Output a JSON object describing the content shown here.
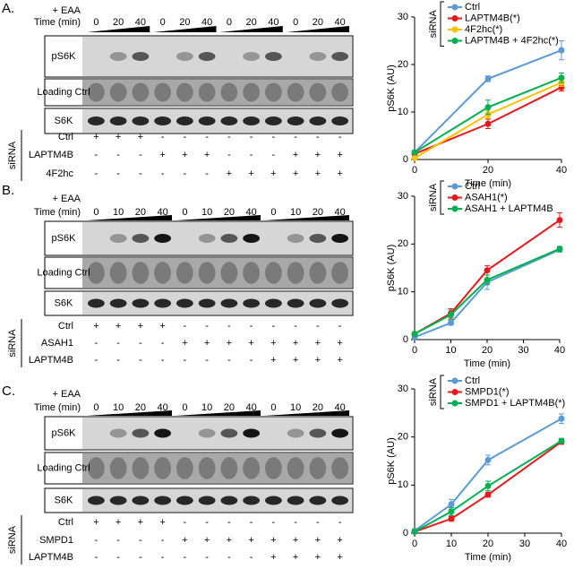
{
  "blots": [
    {
      "label": "A.",
      "treatment": "+ EAA",
      "time_label": "Time (min)",
      "times": [
        "0",
        "20",
        "40",
        "0",
        "20",
        "40",
        "0",
        "20",
        "40",
        "0",
        "20",
        "40"
      ],
      "rows": [
        "pS6K",
        "Loading Ctrl",
        "S6K"
      ],
      "sirna_label": "siRNA",
      "conditions": [
        {
          "name": "Ctrl",
          "signs": [
            "+",
            "+",
            "+",
            "-",
            "-",
            "-",
            "-",
            "-",
            "-",
            "-",
            "-",
            "-"
          ]
        },
        {
          "name": "LAPTM4B",
          "signs": [
            "-",
            "-",
            "-",
            "+",
            "+",
            "+",
            "-",
            "-",
            "-",
            "+",
            "+",
            "+"
          ]
        },
        {
          "name": "4F2hc",
          "signs": [
            "-",
            "-",
            "-",
            "-",
            "-",
            "-",
            "+",
            "+",
            "+",
            "+",
            "+",
            "+"
          ]
        }
      ]
    },
    {
      "label": "B.",
      "treatment": "+ EAA",
      "time_label": "Time (min)",
      "times": [
        "0",
        "10",
        "20",
        "40",
        "0",
        "10",
        "20",
        "40",
        "0",
        "10",
        "20",
        "40"
      ],
      "rows": [
        "pS6K",
        "Loading Ctrl",
        "S6K"
      ],
      "sirna_label": "siRNA",
      "conditions": [
        {
          "name": "Ctrl",
          "signs": [
            "+",
            "+",
            "+",
            "+",
            "-",
            "-",
            "-",
            "-",
            "-",
            "-",
            "-",
            "-"
          ]
        },
        {
          "name": "ASAH1",
          "signs": [
            "-",
            "-",
            "-",
            "-",
            "+",
            "+",
            "+",
            "+",
            "+",
            "+",
            "+",
            "+"
          ]
        },
        {
          "name": "LAPTM4B",
          "signs": [
            "-",
            "-",
            "-",
            "-",
            "-",
            "-",
            "-",
            "-",
            "+",
            "+",
            "+",
            "+"
          ]
        }
      ]
    },
    {
      "label": "C.",
      "treatment": "+ EAA",
      "time_label": "Time (min)",
      "times": [
        "0",
        "10",
        "20",
        "40",
        "0",
        "10",
        "20",
        "40",
        "0",
        "10",
        "20",
        "40"
      ],
      "rows": [
        "pS6K",
        "Loading Ctrl",
        "S6K"
      ],
      "sirna_label": "siRNA",
      "conditions": [
        {
          "name": "Ctrl",
          "signs": [
            "+",
            "+",
            "+",
            "+",
            "-",
            "-",
            "-",
            "-",
            "-",
            "-",
            "-",
            "-"
          ]
        },
        {
          "name": "SMPD1",
          "signs": [
            "-",
            "-",
            "-",
            "-",
            "+",
            "+",
            "+",
            "+",
            "+",
            "+",
            "+",
            "+"
          ]
        },
        {
          "name": "LAPTM4B",
          "signs": [
            "-",
            "-",
            "-",
            "-",
            "-",
            "-",
            "-",
            "-",
            "+",
            "+",
            "+",
            "+"
          ]
        }
      ]
    }
  ],
  "chart_data": [
    {
      "type": "line",
      "xlabel": "Time (min)",
      "ylabel": "pS6K (AU)",
      "legend_title": "siRNA",
      "x": [
        0,
        20,
        40
      ],
      "xlim": [
        0,
        40
      ],
      "xticks": [
        0,
        20,
        40
      ],
      "ylim": [
        0,
        30
      ],
      "yticks": [
        0,
        10,
        20,
        30
      ],
      "series": [
        {
          "name": "Ctrl",
          "color": "#5b9bd5",
          "values": [
            1.5,
            17,
            23
          ],
          "errors": [
            0.4,
            0.6,
            2
          ]
        },
        {
          "name": "LAPTM4B(*)",
          "color": "#e8191c",
          "values": [
            1.2,
            7.5,
            15.2
          ],
          "errors": [
            0.3,
            1,
            0.8
          ]
        },
        {
          "name": "4F2hc(*)",
          "color": "#ffc000",
          "values": [
            0.3,
            9.5,
            16.2
          ],
          "errors": [
            0.2,
            0.8,
            0.8
          ]
        },
        {
          "name": "LAPTM4B + 4F2hc(*)",
          "color": "#00b050",
          "values": [
            1.5,
            11,
            17.2
          ],
          "errors": [
            0.3,
            1.5,
            1
          ]
        }
      ]
    },
    {
      "type": "line",
      "xlabel": "Time (min)",
      "ylabel": "pS6K (AU)",
      "legend_title": "siRNA",
      "x": [
        0,
        10,
        20,
        40
      ],
      "xlim": [
        0,
        40
      ],
      "xticks": [
        0,
        10,
        20,
        30,
        40
      ],
      "ylim": [
        0,
        30
      ],
      "yticks": [
        0,
        10,
        20,
        30
      ],
      "series": [
        {
          "name": "Ctrl",
          "color": "#5b9bd5",
          "values": [
            0.5,
            3.5,
            12,
            18.8
          ],
          "errors": [
            0.2,
            0.5,
            1.5,
            0.5
          ]
        },
        {
          "name": "ASAH1(*)",
          "color": "#e8191c",
          "values": [
            1.2,
            5.5,
            14.5,
            25
          ],
          "errors": [
            0.3,
            1,
            1,
            1.5
          ]
        },
        {
          "name": "ASAH1 + LAPTM4B",
          "color": "#00b050",
          "values": [
            1.2,
            5.2,
            12.5,
            19
          ],
          "errors": [
            0.3,
            1,
            1,
            0.5
          ]
        }
      ]
    },
    {
      "type": "line",
      "xlabel": "Time (min)",
      "ylabel": "pS6K (AU)",
      "legend_title": "siRNA",
      "x": [
        0,
        10,
        20,
        40
      ],
      "xlim": [
        0,
        40
      ],
      "xticks": [
        0,
        10,
        20,
        30,
        40
      ],
      "ylim": [
        0,
        30
      ],
      "yticks": [
        0,
        10,
        20,
        30
      ],
      "series": [
        {
          "name": "Ctrl",
          "color": "#5b9bd5",
          "values": [
            0.5,
            6,
            15.2,
            23.8
          ],
          "errors": [
            0.2,
            1,
            1,
            1
          ]
        },
        {
          "name": "SMPD1(*)",
          "color": "#e8191c",
          "values": [
            0.3,
            3,
            8,
            19
          ],
          "errors": [
            0.2,
            0.5,
            0.5,
            0.5
          ]
        },
        {
          "name": "SMPD1 + LAPTM4B(*)",
          "color": "#00b050",
          "values": [
            0.3,
            4.5,
            9.8,
            19.2
          ],
          "errors": [
            0.2,
            0.8,
            1,
            0.5
          ]
        }
      ]
    }
  ]
}
